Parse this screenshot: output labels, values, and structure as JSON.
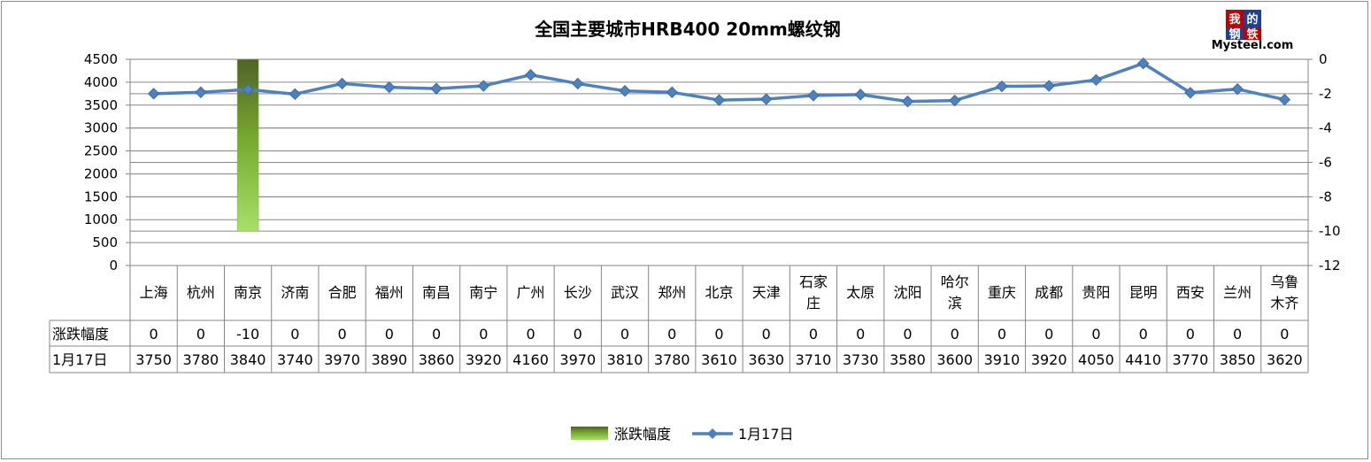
{
  "chart_data": {
    "type": "bar+line",
    "title": "全国主要城市HRB400 20mm螺纹钢",
    "categories": [
      "上海",
      "杭州",
      "南京",
      "济南",
      "合肥",
      "福州",
      "南昌",
      "南宁",
      "广州",
      "长沙",
      "武汉",
      "郑州",
      "北京",
      "天津",
      "石家庄",
      "太原",
      "沈阳",
      "哈尔滨",
      "重庆",
      "成都",
      "贵阳",
      "昆明",
      "西安",
      "兰州",
      "乌鲁木齐"
    ],
    "series": [
      {
        "name": "涨跌幅度",
        "type": "bar",
        "axis": "right",
        "color": "#92d050",
        "values": [
          0,
          0,
          -10,
          0,
          0,
          0,
          0,
          0,
          0,
          0,
          0,
          0,
          0,
          0,
          0,
          0,
          0,
          0,
          0,
          0,
          0,
          0,
          0,
          0,
          0
        ]
      },
      {
        "name": "1月17日",
        "type": "line",
        "axis": "left",
        "color": "#4f81bd",
        "values": [
          3750,
          3780,
          3840,
          3740,
          3970,
          3890,
          3860,
          3920,
          4160,
          3970,
          3810,
          3780,
          3610,
          3630,
          3710,
          3730,
          3580,
          3600,
          3910,
          3920,
          4050,
          4410,
          3770,
          3850,
          3620
        ]
      }
    ],
    "y_left": {
      "min": 0,
      "max": 4500,
      "step": 500,
      "ticks": [
        "0",
        "500",
        "1000",
        "1500",
        "2000",
        "2500",
        "3000",
        "3500",
        "4000",
        "4500"
      ]
    },
    "y_right": {
      "min": -12,
      "max": 0,
      "step": 2,
      "ticks": [
        "0",
        "-2",
        "-4",
        "-6",
        "-8",
        "-10",
        "-12"
      ]
    },
    "table_rows": [
      {
        "label": "涨跌幅度",
        "values": [
          "0",
          "0",
          "-10",
          "0",
          "0",
          "0",
          "0",
          "0",
          "0",
          "0",
          "0",
          "0",
          "0",
          "0",
          "0",
          "0",
          "0",
          "0",
          "0",
          "0",
          "0",
          "0",
          "0",
          "0",
          "0"
        ]
      },
      {
        "label": "1月17日",
        "values": [
          "3750",
          "3780",
          "3840",
          "3740",
          "3970",
          "3890",
          "3860",
          "3920",
          "4160",
          "3970",
          "3810",
          "3780",
          "3610",
          "3630",
          "3710",
          "3730",
          "3580",
          "3600",
          "3910",
          "3920",
          "4050",
          "4410",
          "3770",
          "3850",
          "3620"
        ]
      }
    ],
    "grid": true,
    "legend_position": "bottom"
  },
  "logo": {
    "chars": [
      "我",
      "的",
      "钢",
      "铁"
    ],
    "text": "Mysteel.com"
  }
}
